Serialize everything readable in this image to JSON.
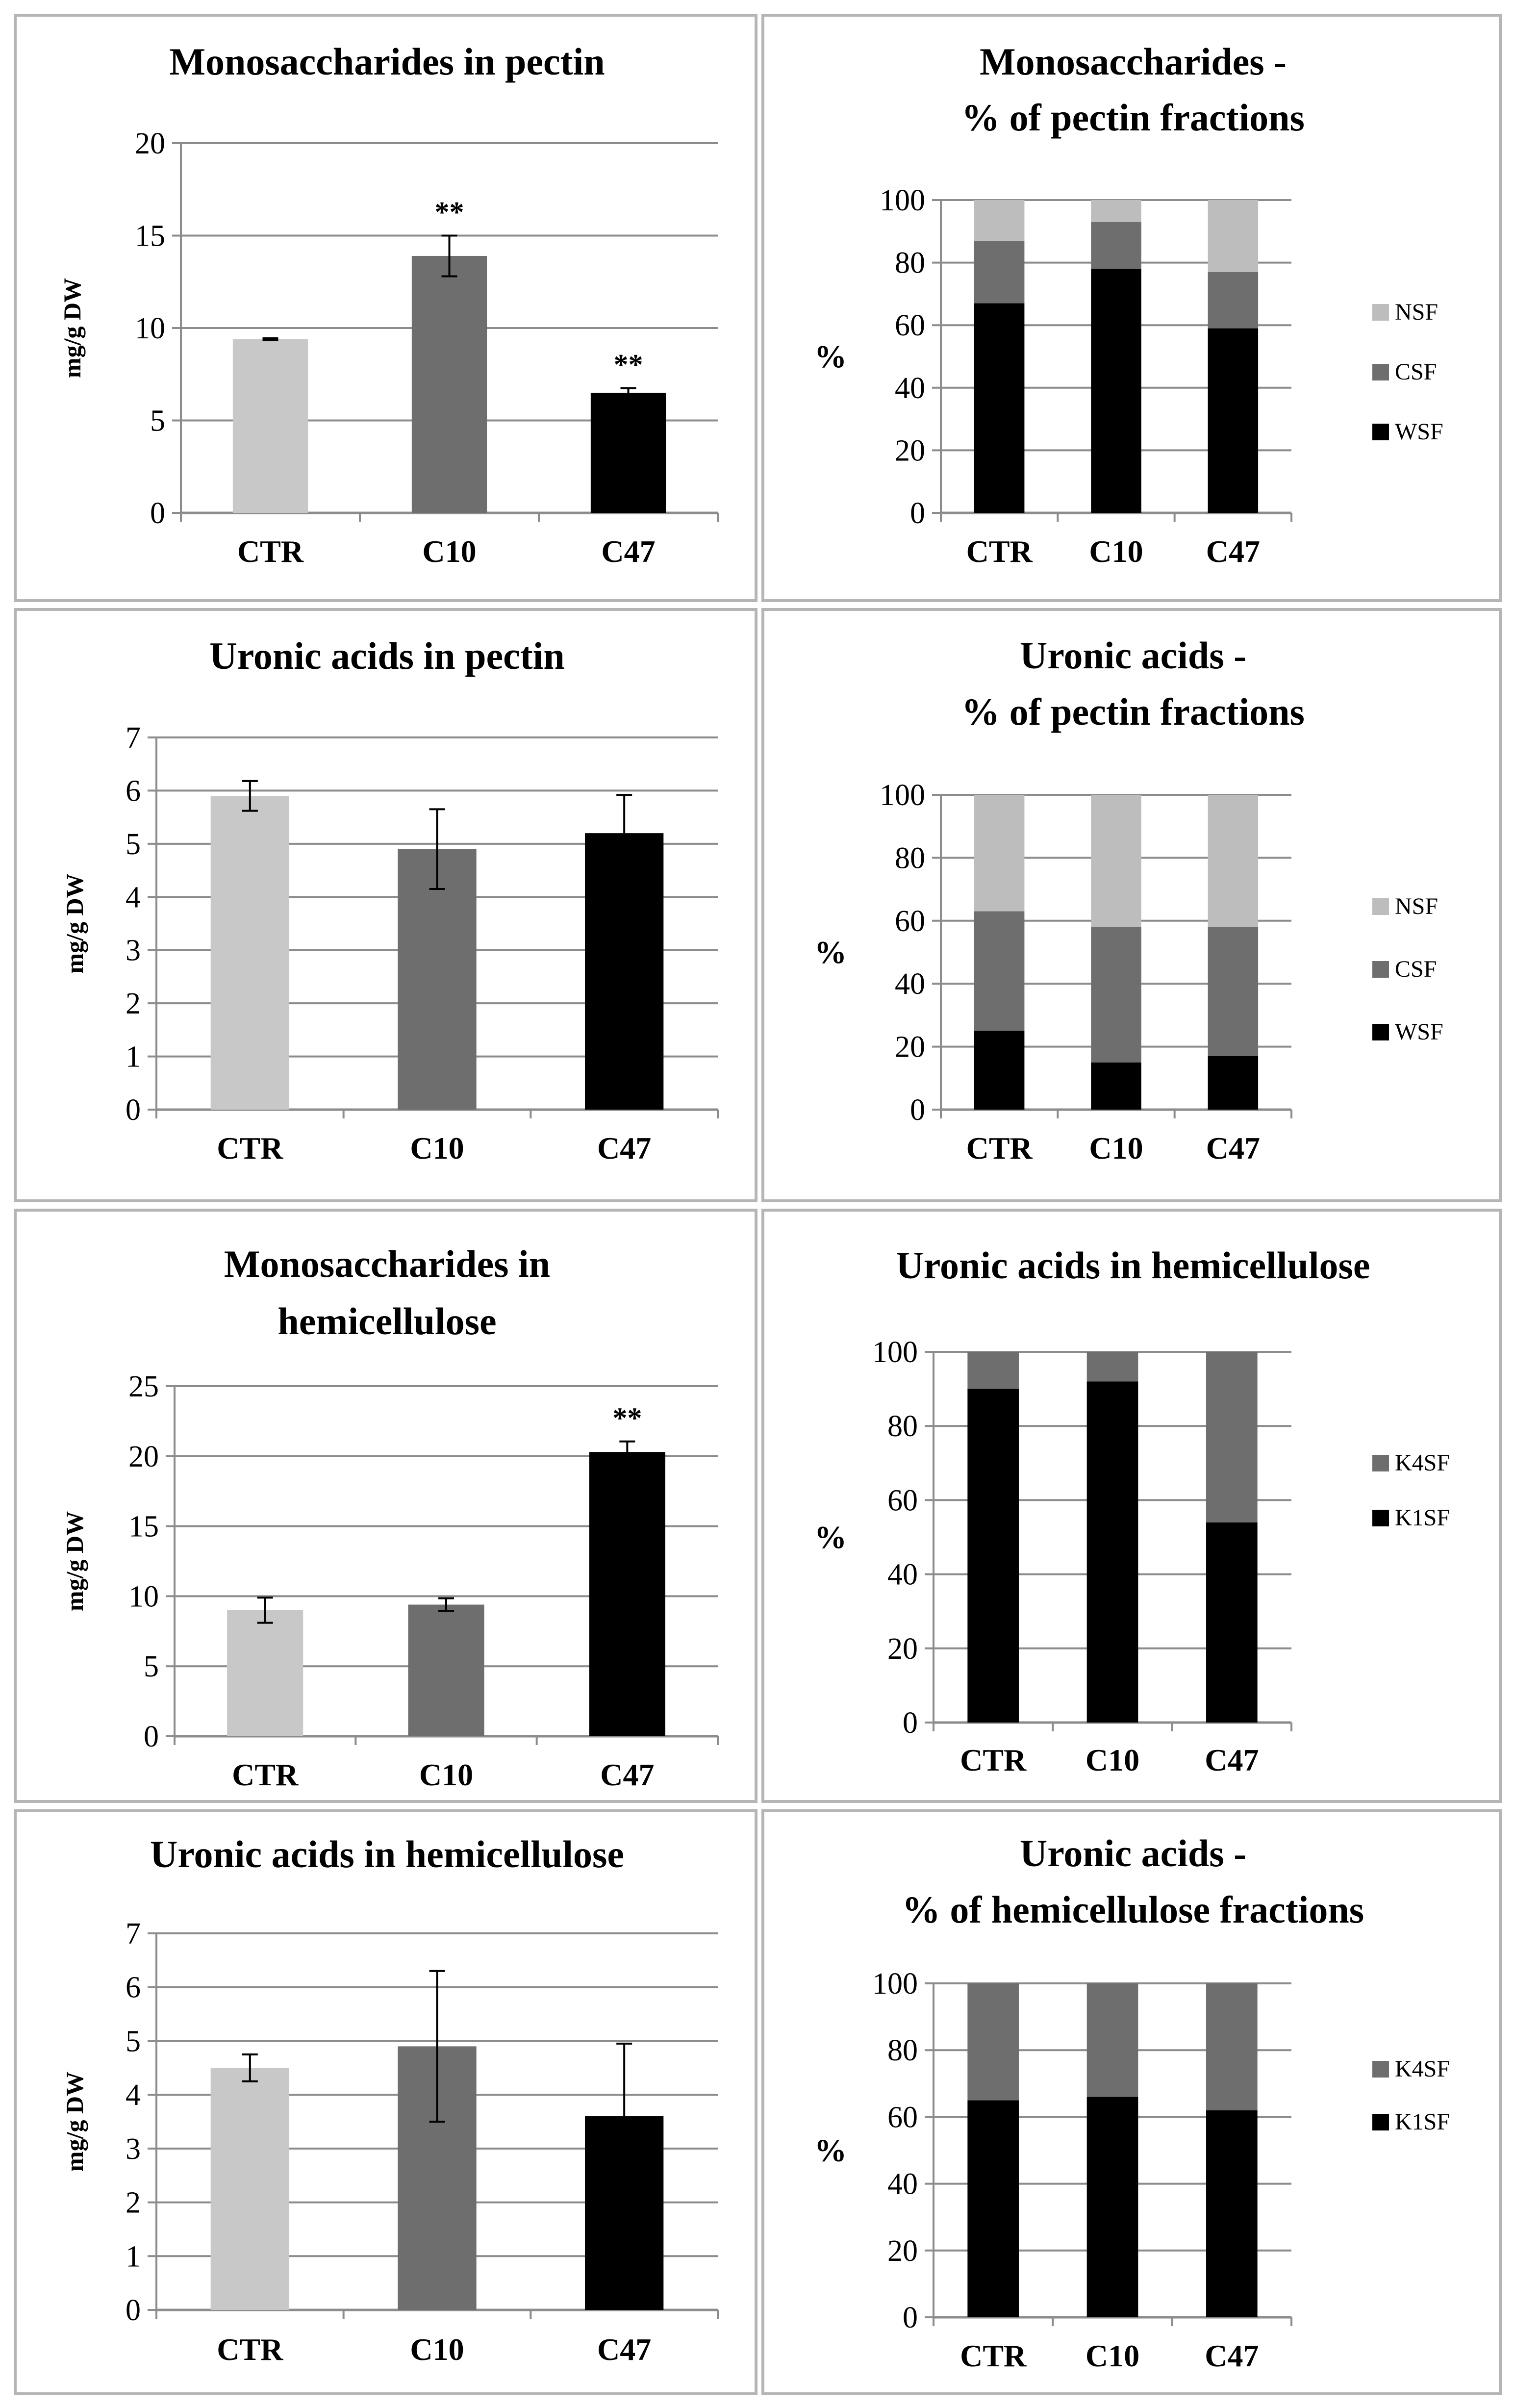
{
  "chart_data": [
    {
      "type": "bar",
      "title": [
        "Monosaccharides in pectin"
      ],
      "categories": [
        "CTR",
        "C10",
        "C47"
      ],
      "values": [
        9.4,
        13.9,
        6.5
      ],
      "errors": [
        0.05,
        1.1,
        0.25
      ],
      "significance": [
        "",
        "**",
        "**"
      ],
      "ylim": [
        0,
        20
      ],
      "yticks": [
        "0",
        "5",
        "10",
        "15",
        "20"
      ],
      "ylabel": "mg/g DW",
      "colors": [
        "#c8c8c8",
        "#6e6e6e",
        "#000000"
      ]
    },
    {
      "type": "bar",
      "stacked": true,
      "title": [
        "Monosaccharides -",
        "% of pectin fractions"
      ],
      "categories": [
        "CTR",
        "C10",
        "C47"
      ],
      "series": [
        {
          "name": "WSF",
          "values": [
            67,
            78,
            59
          ],
          "color": "#000000"
        },
        {
          "name": "CSF",
          "values": [
            20,
            15,
            18
          ],
          "color": "#6e6e6e"
        },
        {
          "name": "NSF",
          "values": [
            13,
            7,
            23
          ],
          "color": "#bdbdbd"
        }
      ],
      "ylim": [
        0,
        100
      ],
      "yticks": [
        "0",
        "20",
        "40",
        "60",
        "80",
        "100"
      ],
      "ylabel": "%",
      "legend_order": [
        2,
        1,
        0
      ]
    },
    {
      "type": "bar",
      "title": [
        "Uronic acids in pectin"
      ],
      "categories": [
        "CTR",
        "C10",
        "C47"
      ],
      "values": [
        5.9,
        4.9,
        5.2
      ],
      "errors": [
        0.28,
        0.75,
        0.72
      ],
      "significance": [
        "",
        "",
        ""
      ],
      "ylim": [
        0,
        7
      ],
      "yticks": [
        "0",
        "1",
        "2",
        "3",
        "4",
        "5",
        "6",
        "7"
      ],
      "ylabel": "mg/g DW",
      "colors": [
        "#c8c8c8",
        "#6e6e6e",
        "#000000"
      ]
    },
    {
      "type": "bar",
      "stacked": true,
      "title": [
        "Uronic acids -",
        "% of pectin fractions"
      ],
      "categories": [
        "CTR",
        "C10",
        "C47"
      ],
      "series": [
        {
          "name": "WSF",
          "values": [
            25,
            15,
            17
          ],
          "color": "#000000"
        },
        {
          "name": "CSF",
          "values": [
            38,
            43,
            41
          ],
          "color": "#6e6e6e"
        },
        {
          "name": "NSF",
          "values": [
            37,
            42,
            42
          ],
          "color": "#bdbdbd"
        }
      ],
      "ylim": [
        0,
        100
      ],
      "yticks": [
        "0",
        "20",
        "40",
        "60",
        "80",
        "100"
      ],
      "ylabel": "%",
      "legend_order": [
        2,
        1,
        0
      ]
    },
    {
      "type": "bar",
      "title": [
        "Monosaccharides in",
        "hemicellulose"
      ],
      "categories": [
        "CTR",
        "C10",
        "C47"
      ],
      "values": [
        9.0,
        9.4,
        20.3
      ],
      "errors": [
        0.9,
        0.45,
        0.75
      ],
      "significance": [
        "",
        "",
        "**"
      ],
      "ylim": [
        0,
        25
      ],
      "yticks": [
        "0",
        "5",
        "10",
        "15",
        "20",
        "25"
      ],
      "ylabel": "mg/g DW",
      "colors": [
        "#c8c8c8",
        "#6e6e6e",
        "#000000"
      ]
    },
    {
      "type": "bar",
      "stacked": true,
      "title": [
        "Uronic acids in hemicellulose"
      ],
      "categories": [
        "CTR",
        "C10",
        "C47"
      ],
      "series": [
        {
          "name": "K1SF",
          "values": [
            90,
            92,
            54
          ],
          "color": "#000000"
        },
        {
          "name": "K4SF",
          "values": [
            10,
            8,
            46
          ],
          "color": "#6e6e6e"
        }
      ],
      "ylim": [
        0,
        100
      ],
      "yticks": [
        "0",
        "20",
        "40",
        "60",
        "80",
        "100"
      ],
      "ylabel": "%",
      "legend_order": [
        1,
        0
      ]
    },
    {
      "type": "bar",
      "title": [
        "Uronic acids in hemicellulose"
      ],
      "categories": [
        "CTR",
        "C10",
        "C47"
      ],
      "values": [
        4.5,
        4.9,
        3.6
      ],
      "errors": [
        0.25,
        1.4,
        1.35
      ],
      "significance": [
        "",
        "",
        ""
      ],
      "ylim": [
        0,
        7
      ],
      "yticks": [
        "0",
        "1",
        "2",
        "3",
        "4",
        "5",
        "6",
        "7"
      ],
      "ylabel": "mg/g DW",
      "colors": [
        "#c8c8c8",
        "#6e6e6e",
        "#000000"
      ]
    },
    {
      "type": "bar",
      "stacked": true,
      "title": [
        "Uronic acids -",
        "% of hemicellulose fractions"
      ],
      "categories": [
        "CTR",
        "C10",
        "C47"
      ],
      "series": [
        {
          "name": "K1SF",
          "values": [
            65,
            66,
            62
          ],
          "color": "#000000"
        },
        {
          "name": "K4SF",
          "values": [
            35,
            34,
            38
          ],
          "color": "#6e6e6e"
        }
      ],
      "ylim": [
        0,
        100
      ],
      "yticks": [
        "0",
        "20",
        "40",
        "60",
        "80",
        "100"
      ],
      "ylabel": "%",
      "legend_order": [
        1,
        0
      ]
    }
  ]
}
